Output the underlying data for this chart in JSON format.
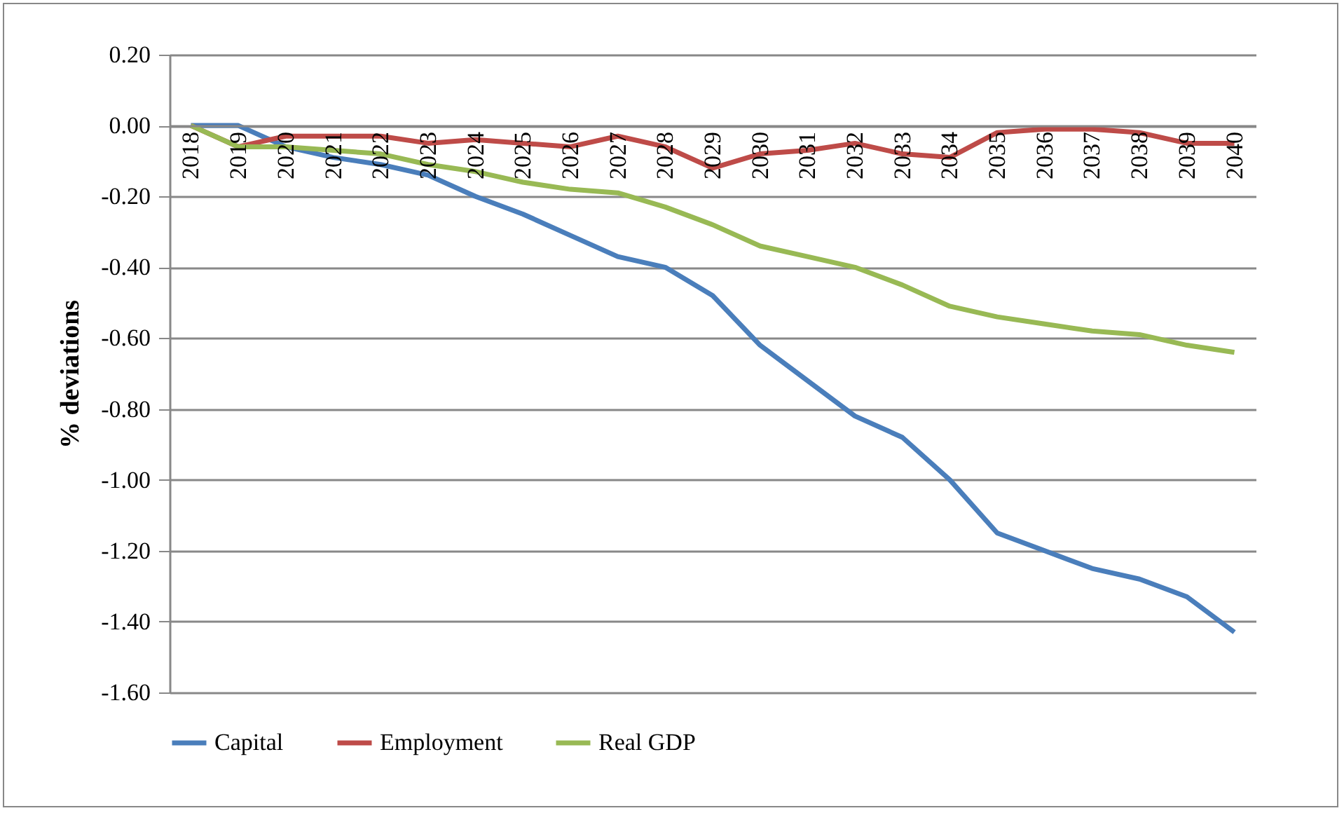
{
  "chart_data": {
    "type": "line",
    "ylabel": "% deviations",
    "categories": [
      "2018",
      "2019",
      "2020",
      "2021",
      "2022",
      "2023",
      "2024",
      "2025",
      "2026",
      "2027",
      "2028",
      "2029",
      "2030",
      "2031",
      "2032",
      "2033",
      "2034",
      "2035",
      "2036",
      "2037",
      "2038",
      "2039",
      "2040"
    ],
    "series": [
      {
        "name": "Capital",
        "color": "#4a7ebb",
        "values": [
          0,
          0,
          -0.06,
          -0.09,
          -0.11,
          -0.14,
          -0.2,
          -0.25,
          -0.31,
          -0.37,
          -0.4,
          -0.48,
          -0.62,
          -0.72,
          -0.82,
          -0.88,
          -1.0,
          -1.15,
          -1.2,
          -1.25,
          -1.28,
          -1.33,
          -1.43
        ]
      },
      {
        "name": "Employment",
        "color": "#be4b48",
        "values": [
          0,
          -0.06,
          -0.03,
          -0.03,
          -0.03,
          -0.05,
          -0.04,
          -0.05,
          -0.06,
          -0.03,
          -0.06,
          -0.12,
          -0.08,
          -0.07,
          -0.05,
          -0.08,
          -0.09,
          -0.02,
          -0.01,
          -0.01,
          -0.02,
          -0.05,
          -0.05
        ]
      },
      {
        "name": "Real GDP",
        "color": "#98b954",
        "values": [
          0,
          -0.06,
          -0.06,
          -0.07,
          -0.08,
          -0.11,
          -0.13,
          -0.16,
          -0.18,
          -0.19,
          -0.23,
          -0.28,
          -0.34,
          -0.37,
          -0.4,
          -0.45,
          -0.51,
          -0.54,
          -0.56,
          -0.58,
          -0.59,
          -0.62,
          -0.64
        ]
      }
    ],
    "ylim": [
      -1.6,
      0.2
    ],
    "yticks": [
      {
        "value": -1.6,
        "label": "-1.60"
      },
      {
        "value": -1.4,
        "label": "-1.40"
      },
      {
        "value": -1.2,
        "label": "-1.20"
      },
      {
        "value": -1.0,
        "label": "-1.00"
      },
      {
        "value": -0.8,
        "label": "-0.80"
      },
      {
        "value": -0.6,
        "label": "-0.60"
      },
      {
        "value": -0.4,
        "label": "-0.40"
      },
      {
        "value": -0.2,
        "label": "-0.20"
      },
      {
        "value": 0,
        "label": "0.00"
      },
      {
        "value": 0.2,
        "label": "0.20"
      }
    ],
    "grid": "y",
    "legend": "bottom",
    "marker": "none",
    "line_style": "solid"
  }
}
